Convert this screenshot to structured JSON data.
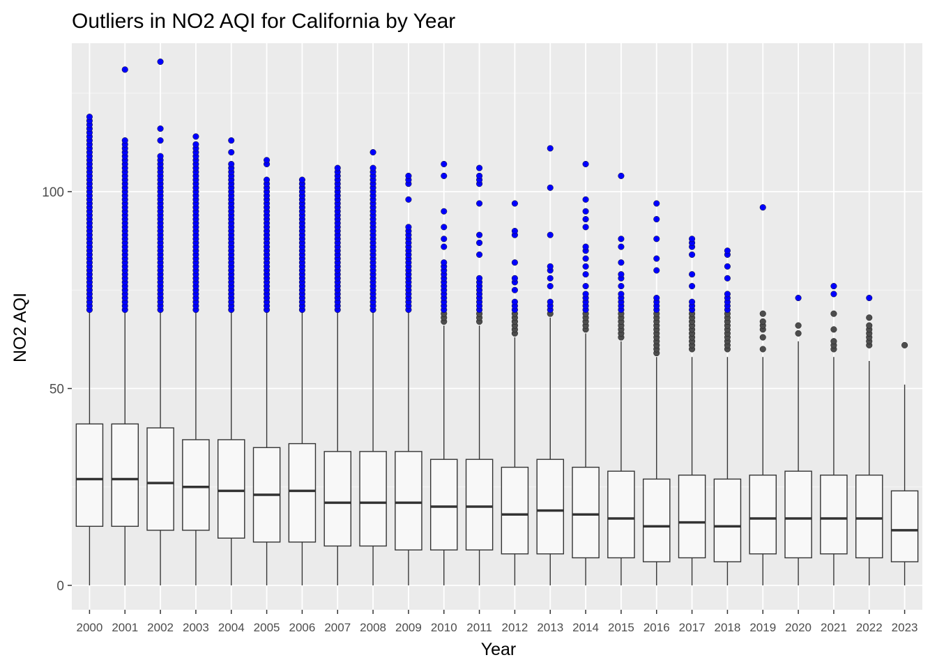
{
  "chart_data": {
    "type": "boxplot",
    "title": "Outliers in NO2 AQI for California by Year",
    "xlabel": "Year",
    "ylabel": "NO2 AQI",
    "ylim": [
      -6,
      137
    ],
    "yticks": [
      0,
      50,
      100
    ],
    "grid": true,
    "colors": {
      "panel": "#ebebeb",
      "grid_major": "#ffffff",
      "box_fill": "#f8f8f8",
      "box_line": "#333333",
      "outlier_highlight": "#0000ff",
      "outlier_default": "#4d4d4d",
      "text": "#000000",
      "tick_text": "#4d4d4d"
    },
    "outlier_threshold_note": "outliers >= 70 highlighted in blue",
    "highlight_threshold": 70,
    "categories": [
      "2000",
      "2001",
      "2002",
      "2003",
      "2004",
      "2005",
      "2006",
      "2007",
      "2008",
      "2009",
      "2010",
      "2011",
      "2012",
      "2013",
      "2014",
      "2015",
      "2016",
      "2017",
      "2018",
      "2019",
      "2020",
      "2021",
      "2022",
      "2023"
    ],
    "boxes": [
      {
        "year": "2000",
        "min": 0,
        "q1": 15,
        "median": 27,
        "q3": 41,
        "whisker_high": 70,
        "outliers_low_high": [
          70,
          119
        ],
        "outliers_extra": []
      },
      {
        "year": "2001",
        "min": 0,
        "q1": 15,
        "median": 27,
        "q3": 41,
        "whisker_high": 70,
        "outliers_low_high": [
          70,
          113
        ],
        "outliers_extra": [
          131
        ]
      },
      {
        "year": "2002",
        "min": 0,
        "q1": 14,
        "median": 26,
        "q3": 40,
        "whisker_high": 70,
        "outliers_low_high": [
          70,
          109
        ],
        "outliers_extra": [
          113,
          116,
          133
        ]
      },
      {
        "year": "2003",
        "min": 0,
        "q1": 14,
        "median": 25,
        "q3": 37,
        "whisker_high": 70,
        "outliers_low_high": [
          70,
          112
        ],
        "outliers_extra": [
          114
        ]
      },
      {
        "year": "2004",
        "min": 0,
        "q1": 12,
        "median": 24,
        "q3": 37,
        "whisker_high": 70,
        "outliers_low_high": [
          70,
          107
        ],
        "outliers_extra": [
          110,
          113
        ]
      },
      {
        "year": "2005",
        "min": 0,
        "q1": 11,
        "median": 23,
        "q3": 35,
        "whisker_high": 70,
        "outliers_low_high": [
          70,
          103
        ],
        "outliers_extra": [
          107,
          108
        ]
      },
      {
        "year": "2006",
        "min": 0,
        "q1": 11,
        "median": 24,
        "q3": 36,
        "whisker_high": 70,
        "outliers_low_high": [
          70,
          103
        ],
        "outliers_extra": []
      },
      {
        "year": "2007",
        "min": 0,
        "q1": 10,
        "median": 21,
        "q3": 34,
        "whisker_high": 70,
        "outliers_low_high": [
          70,
          106
        ],
        "outliers_extra": []
      },
      {
        "year": "2008",
        "min": 0,
        "q1": 10,
        "median": 21,
        "q3": 34,
        "whisker_high": 70,
        "outliers_low_high": [
          70,
          106
        ],
        "outliers_extra": [
          110
        ]
      },
      {
        "year": "2009",
        "min": 0,
        "q1": 9,
        "median": 21,
        "q3": 34,
        "whisker_high": 70,
        "outliers_low_high": [
          70,
          91
        ],
        "outliers_extra": [
          98,
          102,
          103,
          104
        ]
      },
      {
        "year": "2010",
        "min": 0,
        "q1": 9,
        "median": 20,
        "q3": 32,
        "whisker_high": 66,
        "outliers_low_high": [
          67,
          82
        ],
        "outliers_extra": [
          86,
          88,
          91,
          95,
          104,
          107
        ]
      },
      {
        "year": "2011",
        "min": 0,
        "q1": 9,
        "median": 20,
        "q3": 32,
        "whisker_high": 66,
        "outliers_low_high": [
          67,
          78
        ],
        "outliers_extra": [
          84,
          87,
          89,
          97,
          102,
          103,
          104,
          106
        ]
      },
      {
        "year": "2012",
        "min": 0,
        "q1": 8,
        "median": 18,
        "q3": 30,
        "whisker_high": 63,
        "outliers_low_high": [
          64,
          72
        ],
        "outliers_extra": [
          75,
          77,
          78,
          82,
          89,
          90,
          97
        ]
      },
      {
        "year": "2013",
        "min": 0,
        "q1": 8,
        "median": 19,
        "q3": 32,
        "whisker_high": 68,
        "outliers_low_high": [
          69,
          72
        ],
        "outliers_extra": [
          76,
          78,
          80,
          81,
          89,
          101,
          111
        ]
      },
      {
        "year": "2014",
        "min": 0,
        "q1": 7,
        "median": 18,
        "q3": 30,
        "whisker_high": 64,
        "outliers_low_high": [
          65,
          74
        ],
        "outliers_extra": [
          76,
          79,
          81,
          83,
          85,
          86,
          91,
          93,
          95,
          98,
          107
        ]
      },
      {
        "year": "2015",
        "min": 0,
        "q1": 7,
        "median": 17,
        "q3": 29,
        "whisker_high": 62,
        "outliers_low_high": [
          63,
          74
        ],
        "outliers_extra": [
          76,
          78,
          79,
          82,
          86,
          88,
          104
        ]
      },
      {
        "year": "2016",
        "min": 0,
        "q1": 6,
        "median": 15,
        "q3": 27,
        "whisker_high": 58,
        "outliers_low_high": [
          59,
          73
        ],
        "outliers_extra": [
          80,
          83,
          88,
          93,
          97
        ]
      },
      {
        "year": "2017",
        "min": 0,
        "q1": 7,
        "median": 16,
        "q3": 28,
        "whisker_high": 58,
        "outliers_low_high": [
          60,
          72
        ],
        "outliers_extra": [
          76,
          79,
          84,
          86,
          87,
          88
        ]
      },
      {
        "year": "2018",
        "min": 0,
        "q1": 6,
        "median": 15,
        "q3": 27,
        "whisker_high": 58,
        "outliers_low_high": [
          60,
          74
        ],
        "outliers_extra": [
          78,
          81,
          84,
          85
        ]
      },
      {
        "year": "2019",
        "min": 0,
        "q1": 8,
        "median": 17,
        "q3": 28,
        "whisker_high": 58,
        "outliers_low_high": [
          60,
          60
        ],
        "outliers_extra": [
          63,
          65,
          66,
          67,
          69,
          96
        ]
      },
      {
        "year": "2020",
        "min": 0,
        "q1": 7,
        "median": 17,
        "q3": 29,
        "whisker_high": 62,
        "outliers_low_high": [
          64,
          64
        ],
        "outliers_extra": [
          66,
          73
        ]
      },
      {
        "year": "2021",
        "min": 0,
        "q1": 8,
        "median": 17,
        "q3": 28,
        "whisker_high": 58,
        "outliers_low_high": [
          60,
          62
        ],
        "outliers_extra": [
          65,
          69,
          74,
          76
        ]
      },
      {
        "year": "2022",
        "min": 0,
        "q1": 7,
        "median": 17,
        "q3": 28,
        "whisker_high": 57,
        "outliers_low_high": [
          61,
          66
        ],
        "outliers_extra": [
          68,
          73
        ]
      },
      {
        "year": "2023",
        "min": 0,
        "q1": 6,
        "median": 14,
        "q3": 24,
        "whisker_high": 51,
        "outliers_low_high": [
          61,
          61
        ],
        "outliers_extra": []
      }
    ]
  }
}
